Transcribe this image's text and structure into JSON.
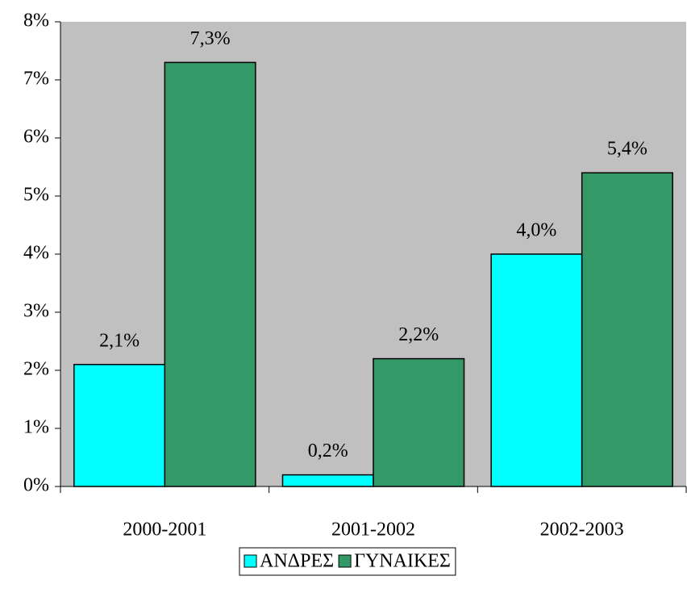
{
  "chart_data": {
    "type": "bar",
    "categories": [
      "2000-2001",
      "2001-2002",
      "2002-2003"
    ],
    "series": [
      {
        "name": "ΑΝΔΡΕΣ",
        "color": "#00ffff",
        "values": [
          2.1,
          0.2,
          4.0
        ],
        "value_labels": [
          "2,1%",
          "0,2%",
          "4,0%"
        ]
      },
      {
        "name": "ΓΥΝΑΙΚΕΣ",
        "color": "#339966",
        "values": [
          7.3,
          2.2,
          5.4
        ],
        "value_labels": [
          "7,3%",
          "2,2%",
          "5,4%"
        ]
      }
    ],
    "ylim": [
      0,
      8
    ],
    "yticks": [
      {
        "value": 0,
        "label": "0%"
      },
      {
        "value": 1,
        "label": "1%"
      },
      {
        "value": 2,
        "label": "2%"
      },
      {
        "value": 3,
        "label": "3%"
      },
      {
        "value": 4,
        "label": "4%"
      },
      {
        "value": 5,
        "label": "5%"
      },
      {
        "value": 6,
        "label": "6%"
      },
      {
        "value": 7,
        "label": "7%"
      },
      {
        "value": 8,
        "label": "8%"
      }
    ],
    "background": "#c0c0c0",
    "legend": "bottom"
  }
}
